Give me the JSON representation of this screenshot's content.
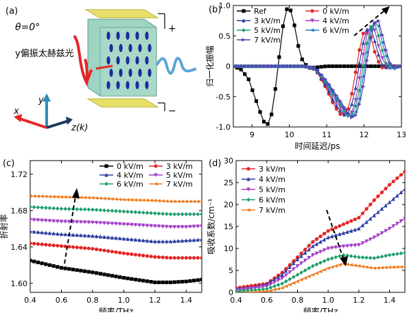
{
  "panel_a": {
    "label": "(a)",
    "theta": "θ=0°",
    "beam_label": "y偏振太赫兹光",
    "plus": "+",
    "minus": "−",
    "axis_x": "x",
    "axis_y": "y",
    "axis_z": "z(k)",
    "colors": {
      "incident": "#e32626",
      "transmitted": "#5aa6d6",
      "plate": "#9fd3c4",
      "electrode": "#e6e06a",
      "ellipse": "#1d2a9c"
    }
  },
  "chart_data": [
    {
      "panel": "(b)",
      "type": "line",
      "xlabel": "时间延迟/ps",
      "ylabel": "归一化振幅",
      "xlim": [
        8.5,
        13
      ],
      "ylim": [
        -1.0,
        1.0
      ],
      "xticks": [
        "9",
        "10",
        "11",
        "12",
        "13"
      ],
      "yticks": [
        "-1.0",
        "-0.5",
        "0",
        "0.5",
        "1.0"
      ],
      "legend": {
        "position": "top-left-and-top-center",
        "columns": 2
      },
      "series": [
        {
          "name": "Ref",
          "color": "#000000",
          "marker": "square",
          "x": [
            8.5,
            8.7,
            8.9,
            9.1,
            9.3,
            9.4,
            9.5,
            9.6,
            9.7,
            9.8,
            9.9,
            10.0,
            10.1,
            10.2,
            10.3,
            10.5,
            10.7,
            11.0,
            12.0,
            13.0
          ],
          "y": [
            0.0,
            -0.05,
            -0.2,
            -0.55,
            -0.9,
            -0.97,
            -0.88,
            -0.5,
            0.0,
            0.55,
            0.92,
            0.98,
            0.8,
            0.45,
            0.15,
            -0.03,
            -0.02,
            0.0,
            0.0,
            0.0
          ]
        },
        {
          "name": "0 kV/m",
          "color": "#e32626",
          "marker": "circle",
          "x": [
            8.5,
            10.4,
            10.7,
            11.0,
            11.2,
            11.4,
            11.55,
            11.7,
            11.85,
            12.0,
            12.15,
            12.3,
            12.45,
            12.6,
            12.8,
            13.0
          ],
          "y": [
            0.0,
            0.0,
            -0.05,
            -0.38,
            -0.65,
            -0.82,
            -0.75,
            -0.38,
            0.2,
            0.6,
            0.55,
            0.2,
            -0.02,
            -0.02,
            0.0,
            0.0
          ]
        },
        {
          "name": "3 kV/m",
          "color": "#2a3ba0",
          "marker": "triangle-up",
          "x": [
            8.5,
            10.4,
            10.7,
            11.0,
            11.2,
            11.45,
            11.6,
            11.75,
            11.9,
            12.05,
            12.2,
            12.35,
            12.5,
            12.65,
            12.8,
            13.0
          ],
          "y": [
            0.0,
            0.0,
            -0.05,
            -0.34,
            -0.6,
            -0.8,
            -0.78,
            -0.45,
            0.15,
            0.6,
            0.62,
            0.25,
            0.0,
            -0.03,
            0.0,
            0.0
          ]
        },
        {
          "name": "4 kV/m",
          "color": "#a13cc4",
          "marker": "triangle-down",
          "x": [
            8.5,
            10.4,
            10.7,
            11.0,
            11.25,
            11.5,
            11.65,
            11.8,
            11.95,
            12.1,
            12.25,
            12.4,
            12.55,
            12.7,
            12.85,
            13.0
          ],
          "y": [
            0.0,
            0.0,
            -0.04,
            -0.3,
            -0.58,
            -0.8,
            -0.8,
            -0.5,
            0.1,
            0.6,
            0.68,
            0.3,
            0.02,
            -0.03,
            0.0,
            0.0
          ]
        },
        {
          "name": "5 kV/m",
          "color": "#1e9e6a",
          "marker": "diamond",
          "x": [
            8.5,
            10.4,
            10.7,
            11.0,
            11.3,
            11.55,
            11.7,
            11.85,
            12.0,
            12.15,
            12.3,
            12.45,
            12.6,
            12.75,
            12.9,
            13.0
          ],
          "y": [
            0.0,
            0.0,
            -0.04,
            -0.28,
            -0.58,
            -0.82,
            -0.8,
            -0.5,
            0.1,
            0.62,
            0.72,
            0.34,
            0.03,
            -0.04,
            0.0,
            0.0
          ]
        },
        {
          "name": "6 kV/m",
          "color": "#1c7fc4",
          "marker": "triangle-left",
          "x": [
            8.5,
            10.4,
            10.7,
            11.0,
            11.3,
            11.6,
            11.75,
            11.9,
            12.05,
            12.2,
            12.35,
            12.5,
            12.65,
            12.8,
            12.95,
            13.0
          ],
          "y": [
            0.0,
            0.0,
            -0.03,
            -0.26,
            -0.56,
            -0.83,
            -0.8,
            -0.48,
            0.12,
            0.66,
            0.76,
            0.36,
            0.04,
            -0.04,
            0.0,
            0.0
          ]
        },
        {
          "name": "7 kV/m",
          "color": "#5a3fb0",
          "marker": "triangle-right",
          "x": [
            8.5,
            10.4,
            10.7,
            11.0,
            11.35,
            11.65,
            11.8,
            11.95,
            12.1,
            12.25,
            12.4,
            12.55,
            12.7,
            12.85,
            13.0
          ],
          "y": [
            0.0,
            0.0,
            -0.03,
            -0.24,
            -0.56,
            -0.85,
            -0.8,
            -0.45,
            0.18,
            0.7,
            0.75,
            0.35,
            0.04,
            -0.03,
            0.0
          ]
        }
      ]
    },
    {
      "panel": "(c)",
      "type": "line",
      "xlabel": "频率/THz",
      "ylabel": "折射率",
      "xlim": [
        0.4,
        1.5
      ],
      "ylim": [
        1.59,
        1.735
      ],
      "xticks": [
        "0.4",
        "0.6",
        "0.8",
        "1.0",
        "1.2",
        "1.4"
      ],
      "yticks": [
        "1.60",
        "1.64",
        "1.68",
        "1.72"
      ],
      "legend": {
        "position": "top-right",
        "columns": 2
      },
      "x": [
        0.4,
        0.6,
        0.8,
        1.0,
        1.2,
        1.3,
        1.4,
        1.5
      ],
      "series": [
        {
          "name": "0 kV/m",
          "color": "#000000",
          "marker": "square",
          "values": [
            1.625,
            1.617,
            1.612,
            1.606,
            1.601,
            1.601,
            1.602,
            1.604
          ]
        },
        {
          "name": "3 kV/m",
          "color": "#e32626",
          "marker": "circle",
          "values": [
            1.644,
            1.641,
            1.638,
            1.633,
            1.629,
            1.628,
            1.628,
            1.628
          ]
        },
        {
          "name": "4 kV/m",
          "color": "#2a3ba0",
          "marker": "triangle-up",
          "values": [
            1.657,
            1.654,
            1.652,
            1.649,
            1.646,
            1.646,
            1.647,
            1.648
          ]
        },
        {
          "name": "5 kV/m",
          "color": "#a13cc4",
          "marker": "triangle-down",
          "values": [
            1.67,
            1.668,
            1.667,
            1.665,
            1.663,
            1.662,
            1.662,
            1.663
          ]
        },
        {
          "name": "6 kV/m",
          "color": "#1e9e6a",
          "marker": "diamond",
          "values": [
            1.684,
            1.682,
            1.681,
            1.679,
            1.677,
            1.676,
            1.676,
            1.676
          ]
        },
        {
          "name": "7 kV/m",
          "color": "#f07c1e",
          "marker": "triangle-left",
          "values": [
            1.696,
            1.695,
            1.694,
            1.692,
            1.691,
            1.69,
            1.69,
            1.69
          ]
        }
      ]
    },
    {
      "panel": "(d)",
      "type": "line",
      "xlabel": "频率/THz",
      "ylabel": "吸收系数/cm⁻¹",
      "xlim": [
        0.4,
        1.5
      ],
      "ylim": [
        0,
        30
      ],
      "xticks": [
        "0.4",
        "0.6",
        "0.8",
        "1.0",
        "1.2",
        "1.4"
      ],
      "yticks": [
        "0",
        "5",
        "10",
        "15",
        "20",
        "25",
        "30"
      ],
      "legend": {
        "position": "top-left",
        "columns": 1
      },
      "x": [
        0.4,
        0.5,
        0.6,
        0.7,
        0.8,
        0.9,
        1.0,
        1.1,
        1.2,
        1.3,
        1.4,
        1.5
      ],
      "series": [
        {
          "name": "3 kV/m",
          "color": "#e32626",
          "marker": "circle",
          "values": [
            1.0,
            1.5,
            2.0,
            4.5,
            8.0,
            11.5,
            14.0,
            15.5,
            17.0,
            21.0,
            24.5,
            27.5
          ]
        },
        {
          "name": "4 kV/m",
          "color": "#2a3ba0",
          "marker": "triangle-up",
          "values": [
            0.8,
            1.2,
            1.8,
            4.0,
            7.5,
            10.5,
            12.5,
            13.5,
            14.5,
            17.5,
            20.5,
            23.5
          ]
        },
        {
          "name": "5 kV/m",
          "color": "#a13cc4",
          "marker": "triangle-down",
          "values": [
            0.5,
            0.9,
            1.4,
            3.2,
            6.0,
            8.5,
            10.0,
            10.5,
            10.8,
            12.5,
            14.5,
            16.8
          ]
        },
        {
          "name": "6 kV/m",
          "color": "#1e9e6a",
          "marker": "diamond",
          "values": [
            0.2,
            0.5,
            0.8,
            2.0,
            4.0,
            6.0,
            7.5,
            8.5,
            8.0,
            7.8,
            8.5,
            9.0
          ]
        },
        {
          "name": "7 kV/m",
          "color": "#f07c1e",
          "marker": "triangle-left",
          "values": [
            -0.3,
            0.0,
            0.2,
            1.0,
            2.5,
            4.0,
            5.5,
            6.5,
            6.0,
            5.5,
            5.7,
            5.8
          ]
        }
      ]
    }
  ]
}
